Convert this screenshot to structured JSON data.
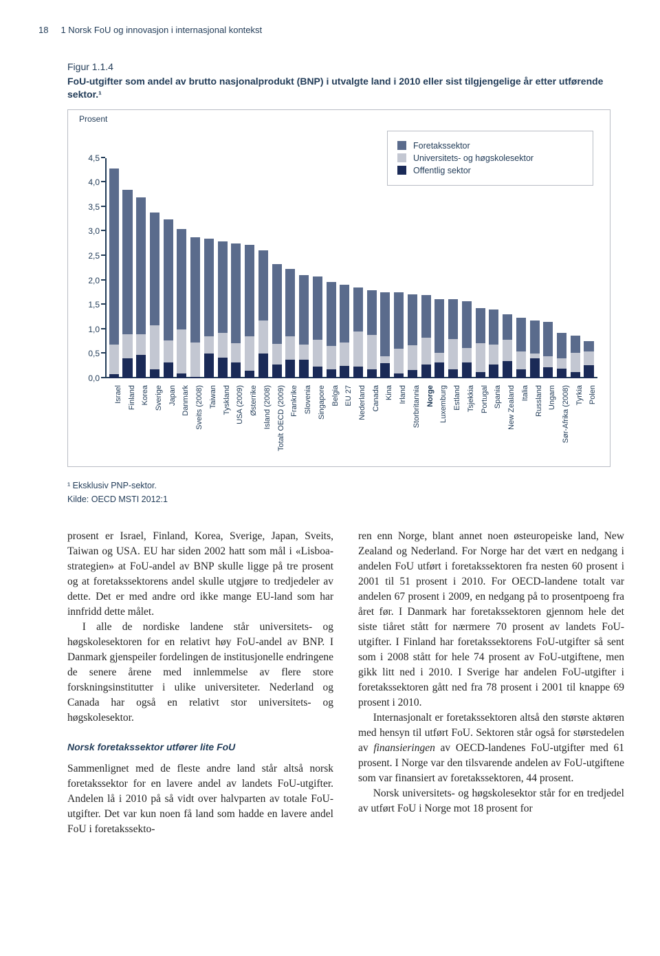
{
  "header": {
    "page_number": "18",
    "chapter": "1 Norsk FoU og innovasjon i internasjonal kontekst"
  },
  "figure": {
    "number": "Figur 1.1.4",
    "caption": "FoU-utgifter som andel av brutto nasjonalprodukt (BNP) i utvalgte land i 2010 eller sist tilgjengelige år etter utførende sektor.¹",
    "ylabel": "Prosent",
    "ymax": 4.5,
    "yticks": [
      "0,0",
      "0,5",
      "1,0",
      "1,5",
      "2,0",
      "2,5",
      "3,0",
      "3,5",
      "4,0",
      "4,5"
    ],
    "legend": [
      {
        "label": "Foretakssektor",
        "color": "#5a6b8c"
      },
      {
        "label": "Universitets- og høgskolesektor",
        "color": "#c3c7d2"
      },
      {
        "label": "Offentlig sektor",
        "color": "#1a2a57"
      }
    ],
    "series_colors": {
      "offentlig": "#1a2a57",
      "uh": "#c3c7d2",
      "foretak": "#5a6b8c"
    },
    "background_color": "#ffffff",
    "border_color": "#b8bcc4",
    "axis_color": "#223c58",
    "label_fontsize": 11,
    "tick_fontsize": 12,
    "data": [
      {
        "name": "Israel",
        "offentlig": 0.08,
        "uh": 0.6,
        "foretak": 3.6
      },
      {
        "name": "Finland",
        "offentlig": 0.4,
        "uh": 0.5,
        "foretak": 2.95
      },
      {
        "name": "Korea",
        "offentlig": 0.48,
        "uh": 0.42,
        "foretak": 2.8
      },
      {
        "name": "Sverige",
        "offentlig": 0.18,
        "uh": 0.9,
        "foretak": 2.3
      },
      {
        "name": "Japan",
        "offentlig": 0.32,
        "uh": 0.45,
        "foretak": 2.48
      },
      {
        "name": "Danmark",
        "offentlig": 0.1,
        "uh": 0.9,
        "foretak": 2.05
      },
      {
        "name": "Sveits (2008)",
        "offentlig": 0.03,
        "uh": 0.7,
        "foretak": 2.15
      },
      {
        "name": "Taiwan",
        "offentlig": 0.5,
        "uh": 0.35,
        "foretak": 2.0
      },
      {
        "name": "Tyskland",
        "offentlig": 0.42,
        "uh": 0.5,
        "foretak": 1.88
      },
      {
        "name": "USA (2009)",
        "offentlig": 0.32,
        "uh": 0.4,
        "foretak": 2.03
      },
      {
        "name": "Østerrike",
        "offentlig": 0.15,
        "uh": 0.7,
        "foretak": 1.88
      },
      {
        "name": "Island (2008)",
        "offentlig": 0.5,
        "uh": 0.68,
        "foretak": 1.44
      },
      {
        "name": "Totalt OECD (2009)",
        "offentlig": 0.28,
        "uh": 0.42,
        "foretak": 1.63
      },
      {
        "name": "Frankrike",
        "offentlig": 0.38,
        "uh": 0.48,
        "foretak": 1.38
      },
      {
        "name": "Slovenia",
        "offentlig": 0.38,
        "uh": 0.3,
        "foretak": 1.42
      },
      {
        "name": "Singapore",
        "offentlig": 0.23,
        "uh": 0.55,
        "foretak": 1.3
      },
      {
        "name": "Belgia",
        "offentlig": 0.18,
        "uh": 0.48,
        "foretak": 1.3
      },
      {
        "name": "EU 27",
        "offentlig": 0.25,
        "uh": 0.48,
        "foretak": 1.18
      },
      {
        "name": "Nederland",
        "offentlig": 0.23,
        "uh": 0.72,
        "foretak": 0.9
      },
      {
        "name": "Canada",
        "offentlig": 0.18,
        "uh": 0.7,
        "foretak": 0.92
      },
      {
        "name": "Kina",
        "offentlig": 0.3,
        "uh": 0.15,
        "foretak": 1.3
      },
      {
        "name": "Irland",
        "offentlig": 0.1,
        "uh": 0.5,
        "foretak": 1.15
      },
      {
        "name": "Storbritannia",
        "offentlig": 0.17,
        "uh": 0.5,
        "foretak": 1.05
      },
      {
        "name": "Norge",
        "offentlig": 0.28,
        "uh": 0.55,
        "foretak": 0.87
      },
      {
        "name": "Luxemburg",
        "offentlig": 0.32,
        "uh": 0.2,
        "foretak": 1.1
      },
      {
        "name": "Estland",
        "offentlig": 0.18,
        "uh": 0.62,
        "foretak": 0.82
      },
      {
        "name": "Tsjekkia",
        "offentlig": 0.32,
        "uh": 0.3,
        "foretak": 0.95
      },
      {
        "name": "Portugal",
        "offentlig": 0.13,
        "uh": 0.58,
        "foretak": 0.72
      },
      {
        "name": "Spania",
        "offentlig": 0.28,
        "uh": 0.4,
        "foretak": 0.72
      },
      {
        "name": "New Zealand",
        "offentlig": 0.35,
        "uh": 0.43,
        "foretak": 0.52
      },
      {
        "name": "Italia",
        "offentlig": 0.18,
        "uh": 0.37,
        "foretak": 0.68
      },
      {
        "name": "Russland",
        "offentlig": 0.4,
        "uh": 0.1,
        "foretak": 0.68
      },
      {
        "name": "Ungarn",
        "offentlig": 0.22,
        "uh": 0.23,
        "foretak": 0.7
      },
      {
        "name": "Sør-Afrika (2008)",
        "offentlig": 0.2,
        "uh": 0.2,
        "foretak": 0.53
      },
      {
        "name": "Tyrkia",
        "offentlig": 0.12,
        "uh": 0.4,
        "foretak": 0.35
      },
      {
        "name": "Polen",
        "offentlig": 0.27,
        "uh": 0.28,
        "foretak": 0.2
      }
    ],
    "bold_countries": [
      "Norge"
    ]
  },
  "footnote": "¹  Eksklusiv PNP-sektor.",
  "source": "Kilde: OECD MSTI 2012:1",
  "body": {
    "left": {
      "p1": "prosent er Israel, Finland, Korea, Sverige, Japan, Sveits, Taiwan og USA. EU har siden 2002 hatt som mål i «Lisboa-strategien» at FoU-andel av BNP skulle ligge på tre prosent og at foretakssektorens andel skulle utgjøre to tredjedeler av dette. Det er med andre ord ikke mange EU-land som har innfridd dette målet.",
      "p2": "I alle de nordiske landene står universitets- og høgskolesektoren for en relativt høy FoU-andel av BNP. I Danmark gjenspeiler fordelingen de institusjonelle endringene de senere årene med innlemmelse av flere store forskningsinstitutter i ulike universiteter. Nederland og Canada har også en relativt stor universitets- og høgskolesektor.",
      "subhead": "Norsk foretakssektor utfører lite FoU",
      "p3": "Sammenlignet med de fleste andre land står altså norsk foretakssektor for en lavere andel av landets FoU-utgifter. Andelen lå i 2010 på så vidt over halvparten av totale FoU-utgifter. Det var kun noen få land som hadde en lavere andel FoU i foretakssekto-"
    },
    "right": {
      "p1_a": "ren enn Norge, blant annet noen østeuropeiske land, New Zealand og Nederland. For Norge har det vært en nedgang i andelen FoU utført i foretakssektoren fra nesten 60 prosent i 2001 til 51 prosent i 2010. For OECD-landene totalt var andelen 67 prosent i 2009, en nedgang på to prosentpoeng fra året før. I Danmark har foretakssektoren gjennom hele det siste tiåret stått for nærmere 70 prosent av landets FoU-utgifter. I Finland har foretakssektorens FoU-utgifter så sent som i 2008 stått for hele 74 prosent av FoU-utgiftene, men gikk litt ned i 2010. I Sverige har andelen FoU-utgifter i foretakssektoren gått ned fra 78 prosent i 2001 til knappe 69 prosent i 2010.",
      "p2_a": "Internasjonalt er foretakssektoren altså den største aktøren med hensyn til utført FoU. Sektoren står også for størstedelen av ",
      "p2_em": "finansieringen",
      "p2_b": " av OECD-landenes FoU-utgifter med 61 prosent. I Norge var den tilsvarende andelen av FoU-utgiftene som var finansiert av foretakssektoren, 44 prosent.",
      "p3": "Norsk universitets- og høgskolesektor står for en tredjedel av utført FoU i Norge mot 18 prosent for"
    }
  }
}
